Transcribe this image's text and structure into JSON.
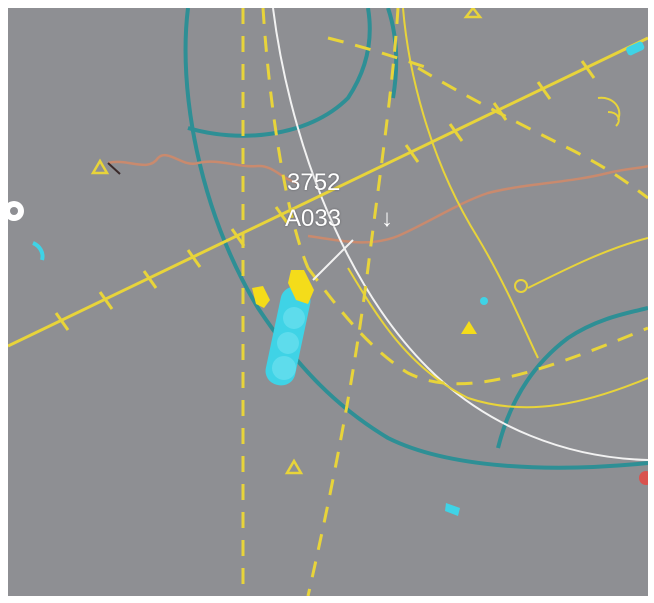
{
  "scope": {
    "background": "#8e8f93",
    "colors": {
      "runway_yellow": "#e8d43a",
      "boundary_teal": "#2e8f95",
      "range_ring_white": "#f2f2f2",
      "coast_orange": "#c98a6e",
      "target_cyan": "#3fd3e6",
      "target_yellow": "#f4dc1a",
      "marker_red": "#d9534f"
    }
  },
  "track": {
    "squawk_code": "3752",
    "altitude": "A033",
    "trend_icon": "↓"
  },
  "icons": {
    "trend": "down-arrow-icon",
    "waypoint": "triangle-waypoint-icon",
    "beacon": "circle-beacon-icon"
  }
}
